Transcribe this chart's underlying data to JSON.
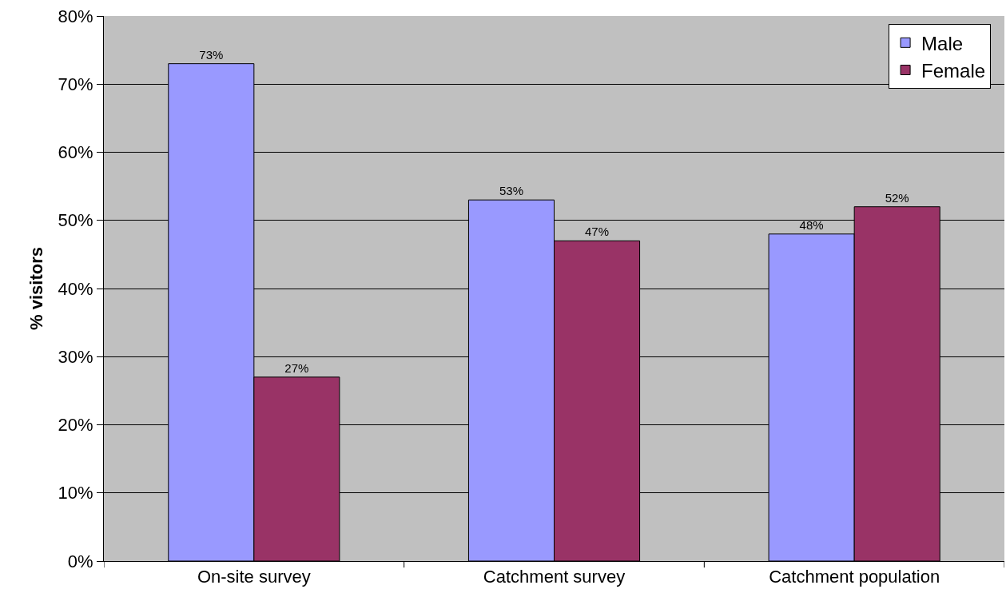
{
  "chart_data": {
    "type": "bar",
    "ylabel": "% visitors",
    "categories": [
      "On-site survey",
      "Catchment survey",
      "Catchment population"
    ],
    "series": [
      {
        "name": "Male",
        "color": "#9999ff",
        "values": [
          73,
          53,
          48
        ],
        "value_labels": [
          "73%",
          "53%",
          "48%"
        ]
      },
      {
        "name": "Female",
        "color": "#993366",
        "values": [
          27,
          47,
          52
        ],
        "value_labels": [
          "27%",
          "47%",
          "52%"
        ]
      }
    ],
    "ylim": [
      0,
      80
    ],
    "yticks": [
      {
        "value": 0,
        "label": "0%"
      },
      {
        "value": 10,
        "label": "10%"
      },
      {
        "value": 20,
        "label": "20%"
      },
      {
        "value": 30,
        "label": "30%"
      },
      {
        "value": 40,
        "label": "40%"
      },
      {
        "value": 50,
        "label": "50%"
      },
      {
        "value": 60,
        "label": "60%"
      },
      {
        "value": 70,
        "label": "70%"
      },
      {
        "value": 80,
        "label": "80%"
      }
    ],
    "grid": "y",
    "legend": "top right"
  }
}
